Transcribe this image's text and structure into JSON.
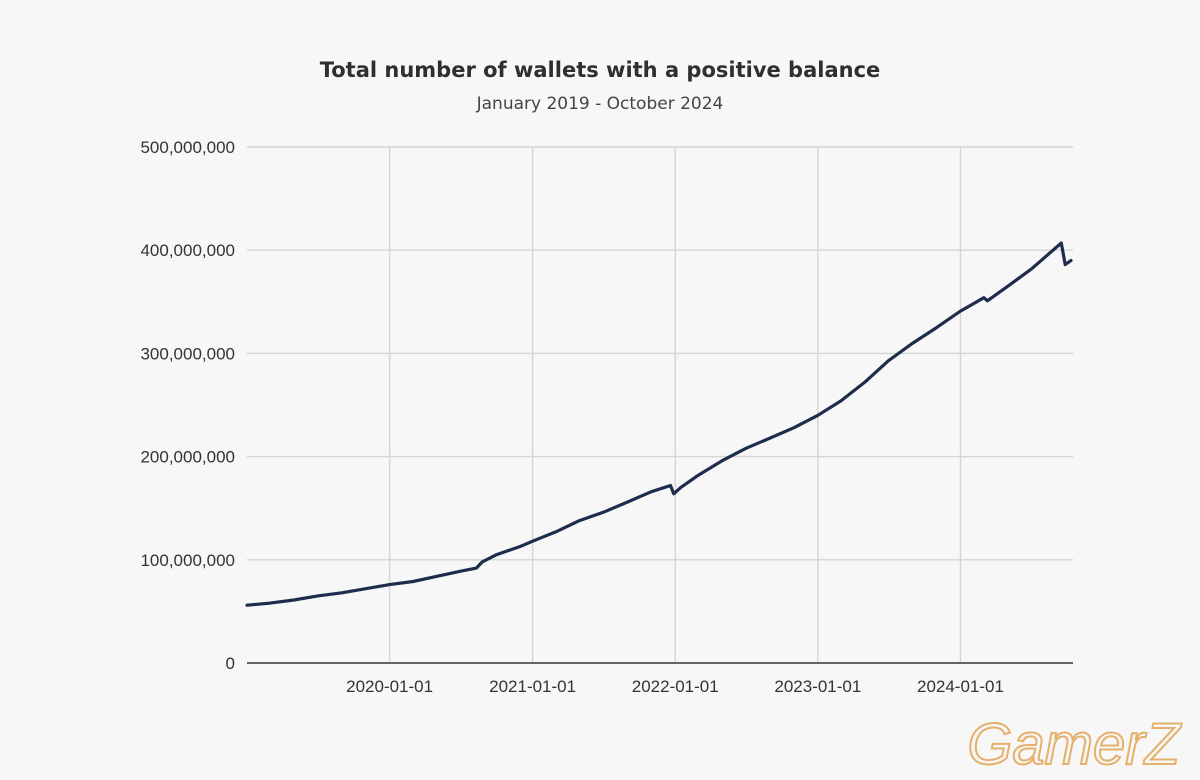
{
  "chart_data": {
    "type": "line",
    "title": "Total number of wallets with a positive balance",
    "subtitle": "January 2019 - October 2024",
    "xlabel": "",
    "ylabel": "",
    "xlim": [
      "2019-01-01",
      "2024-10-15"
    ],
    "ylim": [
      0,
      500000000
    ],
    "y_ticks": [
      0,
      100000000,
      200000000,
      300000000,
      400000000,
      500000000
    ],
    "y_tick_labels": [
      "0",
      "100,000,000",
      "200,000,000",
      "300,000,000",
      "400,000,000",
      "500,000,000"
    ],
    "x_ticks": [
      "2020-01-01",
      "2021-01-01",
      "2022-01-01",
      "2023-01-01",
      "2024-01-01"
    ],
    "x_tick_labels": [
      "2020-01-01",
      "2021-01-01",
      "2022-01-01",
      "2023-01-01",
      "2024-01-01"
    ],
    "grid": true,
    "legend": "none",
    "line_color": "#1f2d4d",
    "series": [
      {
        "name": "",
        "x": [
          "2019-01-01",
          "2019-03-01",
          "2019-05-01",
          "2019-07-01",
          "2019-09-01",
          "2019-11-01",
          "2020-01-01",
          "2020-03-01",
          "2020-05-01",
          "2020-07-01",
          "2020-08-10",
          "2020-08-25",
          "2020-10-01",
          "2020-12-01",
          "2021-01-01",
          "2021-03-01",
          "2021-05-01",
          "2021-07-01",
          "2021-09-01",
          "2021-11-01",
          "2021-12-20",
          "2021-12-28",
          "2022-01-15",
          "2022-03-01",
          "2022-05-01",
          "2022-07-01",
          "2022-09-01",
          "2022-11-01",
          "2023-01-01",
          "2023-03-01",
          "2023-05-01",
          "2023-07-01",
          "2023-09-01",
          "2023-11-01",
          "2024-01-01",
          "2024-03-01",
          "2024-03-10",
          "2024-05-01",
          "2024-07-01",
          "2024-09-15",
          "2024-09-25",
          "2024-10-10"
        ],
        "y": [
          56000000,
          58000000,
          61000000,
          65000000,
          68000000,
          72000000,
          76000000,
          79000000,
          84000000,
          89000000,
          92000000,
          98000000,
          105000000,
          113000000,
          118000000,
          127000000,
          138000000,
          146000000,
          156000000,
          166000000,
          172000000,
          164000000,
          170000000,
          182000000,
          196000000,
          208000000,
          218000000,
          228000000,
          240000000,
          254000000,
          272000000,
          293000000,
          310000000,
          325000000,
          341000000,
          354000000,
          351000000,
          365000000,
          382000000,
          407000000,
          386000000,
          390000000
        ]
      }
    ]
  },
  "watermark": {
    "text": "GamerZ",
    "color": "#e5b06a"
  }
}
